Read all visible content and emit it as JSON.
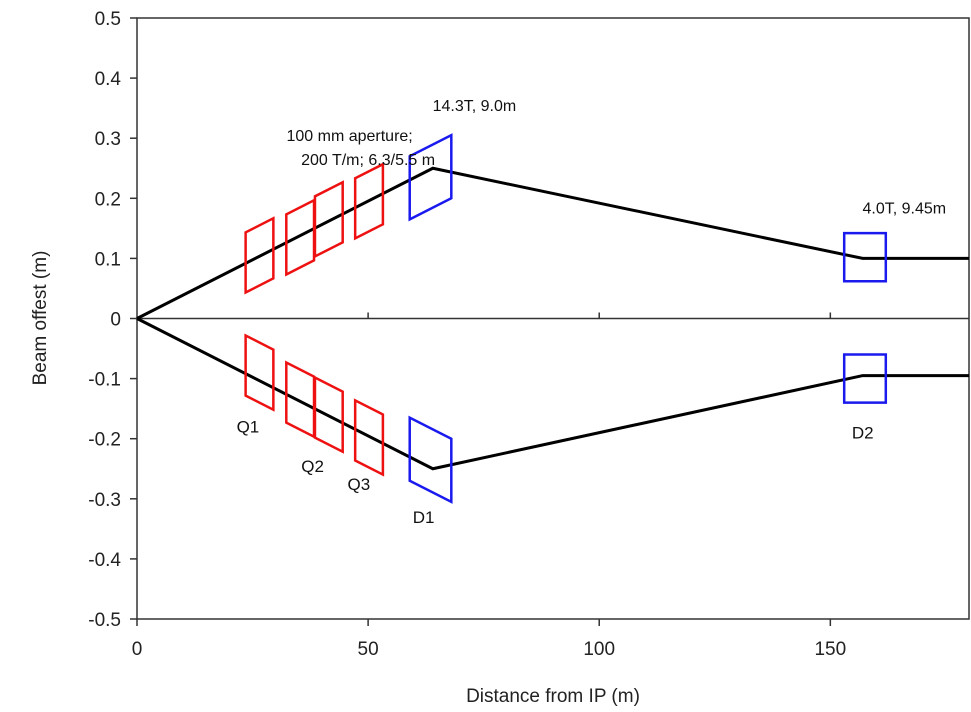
{
  "chart_data": {
    "type": "line",
    "xlabel": "Distance from IP (m)",
    "ylabel": "Beam offest (m)",
    "xlim": [
      0,
      180
    ],
    "ylim": [
      -0.5,
      0.5
    ],
    "x_ticks": [
      0,
      50,
      100,
      150
    ],
    "y_ticks": [
      0.5,
      0.4,
      0.3,
      0.2,
      0.1,
      0,
      -0.1,
      -0.2,
      -0.3,
      -0.4,
      -0.5
    ],
    "x_tick_labels": [
      "0",
      "50",
      "100",
      "150"
    ],
    "y_tick_labels": [
      "0.5",
      "0.4",
      "0.3",
      "0.2",
      "0.1",
      "0",
      "-0.1",
      "-0.2",
      "-0.3",
      "-0.4",
      "-0.5"
    ],
    "grid": false,
    "series": [
      {
        "x": [
          0,
          64,
          157,
          180
        ],
        "y": [
          0,
          0.25,
          0.1,
          0.1
        ]
      },
      {
        "x": [
          0,
          64,
          157,
          180
        ],
        "y": [
          0,
          -0.25,
          -0.095,
          -0.095
        ]
      }
    ],
    "magnets": [
      {
        "kind": "quad",
        "center_x": 26.5,
        "center_y": 0.105,
        "width_m": 6,
        "height": 0.1
      },
      {
        "kind": "quad",
        "center_x": 35.3,
        "center_y": 0.135,
        "width_m": 6,
        "height": 0.1
      },
      {
        "kind": "quad",
        "center_x": 41.5,
        "center_y": 0.165,
        "width_m": 6,
        "height": 0.1
      },
      {
        "kind": "quad",
        "center_x": 50.2,
        "center_y": 0.195,
        "width_m": 6,
        "height": 0.1
      },
      {
        "kind": "dipole",
        "center_x": 63.5,
        "center_y": 0.235,
        "width_m": 9,
        "height": 0.105
      },
      {
        "kind": "dipole",
        "center_x": 157.5,
        "center_y": 0.102,
        "width_m": 9,
        "height": 0.08
      },
      {
        "kind": "quad",
        "center_x": 26.5,
        "center_y": -0.09,
        "width_m": 6,
        "height": 0.1
      },
      {
        "kind": "quad",
        "center_x": 35.3,
        "center_y": -0.135,
        "width_m": 6,
        "height": 0.1
      },
      {
        "kind": "quad",
        "center_x": 41.5,
        "center_y": -0.16,
        "width_m": 6,
        "height": 0.1
      },
      {
        "kind": "quad",
        "center_x": 50.2,
        "center_y": -0.198,
        "width_m": 6,
        "height": 0.1
      },
      {
        "kind": "dipole",
        "center_x": 63.5,
        "center_y": -0.235,
        "width_m": 9,
        "height": 0.105
      },
      {
        "kind": "dipole",
        "center_x": 157.5,
        "center_y": -0.1,
        "width_m": 9,
        "height": 0.08
      }
    ],
    "annotations": [
      {
        "id": "quad-spec-1",
        "text": "100 mm aperture;",
        "x": 46,
        "y": 0.295
      },
      {
        "id": "quad-spec-2",
        "text": "200 T/m; 6.3/5.5 m",
        "x": 50,
        "y": 0.255
      },
      {
        "id": "d1-spec",
        "text": "14.3T, 9.0m",
        "x": 73,
        "y": 0.345
      },
      {
        "id": "d2-spec",
        "text": "4.0T, 9.45m",
        "x": 166,
        "y": 0.175
      }
    ],
    "magnet_labels": [
      {
        "text": "Q1",
        "x": 24,
        "y": -0.19
      },
      {
        "text": "Q2",
        "x": 38,
        "y": -0.255
      },
      {
        "text": "Q3",
        "x": 48,
        "y": -0.285
      },
      {
        "text": "D1",
        "x": 62,
        "y": -0.34
      },
      {
        "text": "D2",
        "x": 157,
        "y": -0.2
      }
    ],
    "colors": {
      "quad": "#ee1111",
      "dipole": "#1a1aee",
      "orbit": "#000000",
      "axis": "#333333"
    }
  }
}
